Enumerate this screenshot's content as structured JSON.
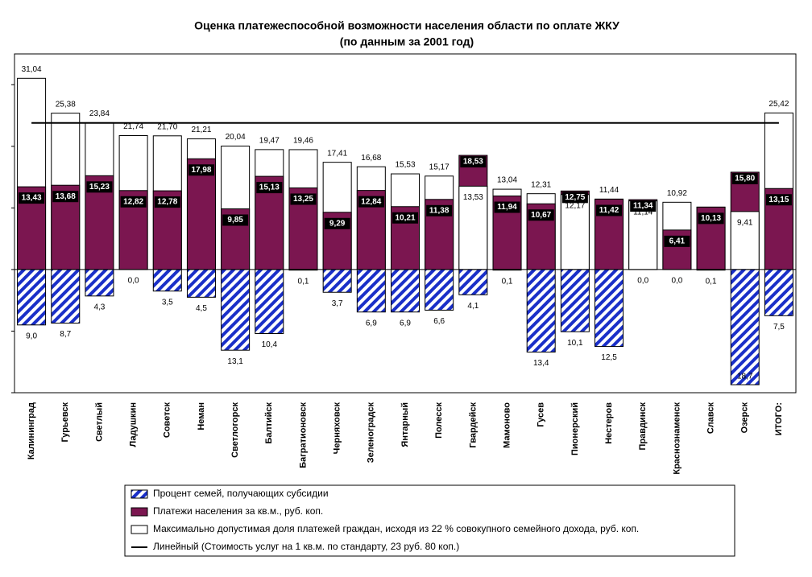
{
  "chart_data": {
    "type": "bar",
    "title": "Оценка платежеспособной возможности населения области по оплате ЖКУ",
    "subtitle": "(по данным за 2001 год)",
    "categories": [
      "Калининград",
      "Гурьевск",
      "Светлый",
      "Ладушкин",
      "Советск",
      "Неман",
      "Светлогорск",
      "Балтийск",
      "Багратионовск",
      "Черняховск",
      "Зеленоградск",
      "Янтарный",
      "Полесск",
      "Гвардейск",
      "Мамоново",
      "Гусев",
      "Пионерский",
      "Нестеров",
      "Правдинск",
      "Краснознаменск",
      "Славск",
      "Озерск",
      "ИТОГО:"
    ],
    "series": [
      {
        "name": "Процент семей, получающих субсидии",
        "color": "#1a2fc8",
        "pattern": "hatch",
        "values": [
          -9.0,
          -8.7,
          -4.3,
          0.0,
          -3.5,
          -4.5,
          -13.1,
          -10.4,
          -0.1,
          -3.7,
          -6.9,
          -6.9,
          -6.6,
          -4.1,
          -0.1,
          -13.4,
          -10.1,
          -12.5,
          0.0,
          0.0,
          -0.1,
          -18.7,
          -7.5
        ],
        "value_labels": [
          "9,0",
          "8,7",
          "4,3",
          "0,0",
          "3,5",
          "4,5",
          "13,1",
          "10,4",
          "0,1",
          "3,7",
          "6,9",
          "6,9",
          "6,6",
          "4,1",
          "0,1",
          "13,4",
          "10,1",
          "12,5",
          "0,0",
          "0,0",
          "0,1",
          "18,7",
          "7,5"
        ]
      },
      {
        "name": "Платежи населения за кв.м., руб. коп.",
        "color": "#7b1650",
        "values": [
          13.43,
          13.68,
          15.23,
          12.82,
          12.78,
          17.98,
          9.85,
          15.13,
          13.25,
          9.29,
          12.84,
          10.21,
          11.38,
          18.53,
          11.94,
          10.67,
          12.75,
          11.42,
          11.34,
          6.41,
          10.13,
          15.8,
          13.15
        ],
        "value_labels": [
          "13,43",
          "13,68",
          "15,23",
          "12,82",
          "12,78",
          "17,98",
          "9,85",
          "15,13",
          "13,25",
          "9,29",
          "12,84",
          "10,21",
          "11,38",
          "18,53",
          "11,94",
          "10,67",
          "12,75",
          "11,42",
          "11,34",
          "6,41",
          "10,13",
          "15,80",
          "13,15"
        ]
      },
      {
        "name": "Максимально допустимая доля платежей граждан, исходя из 22 % совокупного семейного дохода, руб. коп.",
        "color": "#ffffff",
        "values": [
          31.04,
          25.38,
          23.84,
          21.74,
          21.7,
          21.21,
          20.04,
          19.47,
          19.46,
          17.41,
          16.68,
          15.53,
          15.17,
          13.53,
          13.04,
          12.31,
          12.17,
          11.44,
          11.14,
          10.92,
          10.13,
          9.41,
          25.42
        ],
        "value_labels": [
          "31,04",
          "25,38",
          "23,84",
          "21,74",
          "21,70",
          "21,21",
          "20,04",
          "19,47",
          "19,46",
          "17,41",
          "16,68",
          "15,53",
          "15,17",
          "13,53",
          "13,04",
          "12,31",
          "12,17",
          "11,44",
          "11,14",
          "10,92",
          "10,13",
          "9,41",
          "25,42"
        ]
      }
    ],
    "reference_line": {
      "name": "Линейный (Стоимость услуг на 1 кв.м. по стандарту, 23 руб. 80 коп.)",
      "value": 23.8,
      "color": "#000000"
    },
    "ylim": [
      -20,
      35
    ],
    "yticks": [
      -20,
      -10,
      0,
      10,
      20,
      30
    ]
  }
}
